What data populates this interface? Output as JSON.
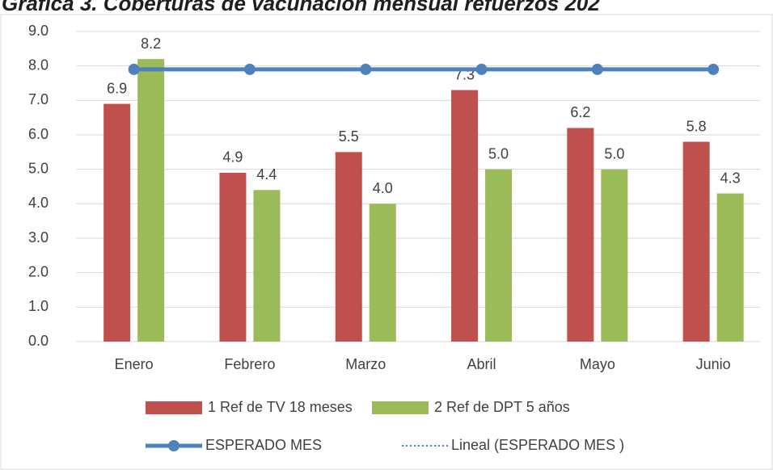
{
  "chart_data": {
    "type": "bar",
    "title": "Gráfica 3. Coberturas de vacunación mensual refuerzos 202",
    "categories": [
      "Enero",
      "Febrero",
      "Marzo",
      "Abril",
      "Mayo",
      "Junio"
    ],
    "series": [
      {
        "name": "1 Ref de TV 18 meses",
        "color": "#c0504d",
        "values": [
          6.9,
          4.9,
          5.5,
          7.3,
          6.2,
          5.8
        ],
        "value_labels": [
          "6.9",
          "4.9",
          "5.5",
          "7.3",
          "6.2",
          "5.8"
        ]
      },
      {
        "name": "2 Ref de DPT 5 años",
        "color": "#9bbb59",
        "values": [
          8.2,
          4.4,
          4.0,
          5.0,
          5.0,
          4.3
        ],
        "value_labels": [
          "8.2",
          "4.4",
          "4.0",
          "5.0",
          "5.0",
          "4.3"
        ]
      },
      {
        "name": "ESPERADO MES",
        "type": "line",
        "color": "#4f81bd",
        "values": [
          7.9,
          7.9,
          7.9,
          7.9,
          7.9,
          7.9
        ]
      }
    ],
    "trendline": {
      "name": "Lineal (ESPERADO MES )",
      "color": "#4f81bd"
    },
    "ylim": [
      0,
      9
    ],
    "yticks": [
      {
        "value": 0,
        "label": "0.0"
      },
      {
        "value": 1,
        "label": "1.0"
      },
      {
        "value": 2,
        "label": "2.0"
      },
      {
        "value": 3,
        "label": "3.0"
      },
      {
        "value": 4,
        "label": "4.0"
      },
      {
        "value": 5,
        "label": "5.0"
      },
      {
        "value": 6,
        "label": "6.0"
      },
      {
        "value": 7,
        "label": "7.0"
      },
      {
        "value": 8,
        "label": "8.0"
      },
      {
        "value": 9,
        "label": "9.0"
      }
    ],
    "grid": true
  }
}
